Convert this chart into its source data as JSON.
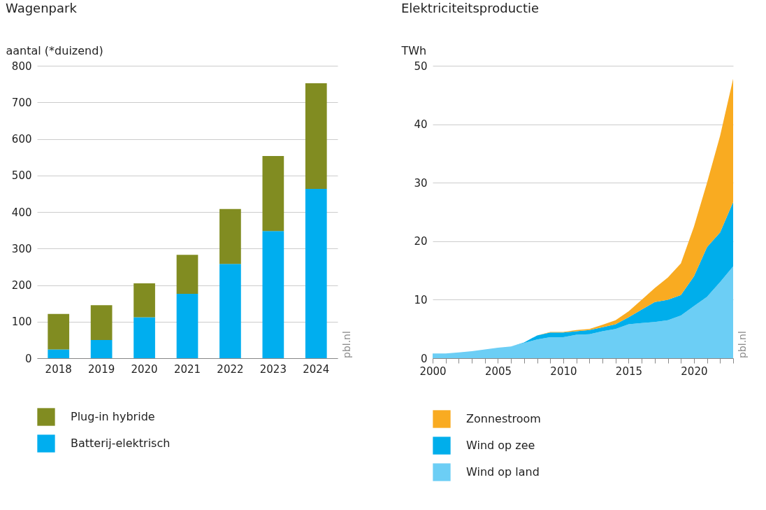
{
  "chart_data": [
    {
      "type": "bar",
      "title": "Wagenpark",
      "ylabel": "aantal (*duizend)",
      "stacked": true,
      "grid": "y",
      "legend": "bottom",
      "categories": [
        "2018",
        "2019",
        "2020",
        "2021",
        "2022",
        "2023",
        "2024"
      ],
      "series": [
        {
          "name": "Batterij-elektrisch",
          "color": "#00aeef",
          "values": [
            24,
            50,
            112,
            176,
            258,
            348,
            463
          ]
        },
        {
          "name": "Plug-in hybride",
          "color": "#818c21",
          "values": [
            97,
            95,
            93,
            107,
            150,
            205,
            289
          ]
        }
      ],
      "ylim": [
        0,
        800
      ],
      "yticks": [
        0,
        100,
        200,
        300,
        400,
        500,
        600,
        700,
        800
      ],
      "annotations": [
        "pbl.nl"
      ]
    },
    {
      "type": "area",
      "title": "Elektriciteitsproductie",
      "ylabel": "TWh",
      "stacked": true,
      "grid": "y",
      "legend": "bottom",
      "x": [
        2000,
        2001,
        2002,
        2003,
        2004,
        2005,
        2006,
        2007,
        2008,
        2009,
        2010,
        2011,
        2012,
        2013,
        2014,
        2015,
        2016,
        2017,
        2018,
        2019,
        2020,
        2021,
        2022,
        2023
      ],
      "series": [
        {
          "name": "Wind op land",
          "color": "#6ccef5",
          "values": [
            0.8,
            0.8,
            1.0,
            1.2,
            1.5,
            1.8,
            2.0,
            2.6,
            3.2,
            3.6,
            3.6,
            4.0,
            4.1,
            4.6,
            5.0,
            5.8,
            6.0,
            6.2,
            6.5,
            7.3,
            8.9,
            10.5,
            13.0,
            15.7
          ]
        },
        {
          "name": "Wind op zee",
          "color": "#00aeeb",
          "values": [
            0,
            0,
            0,
            0,
            0,
            0,
            0,
            0.1,
            0.7,
            0.8,
            0.8,
            0.6,
            0.7,
            0.7,
            0.8,
            1.2,
            2.3,
            3.4,
            3.5,
            3.5,
            5.1,
            8.5,
            8.5,
            11.0
          ]
        },
        {
          "name": "Zonnestroom",
          "color": "#f9ab21",
          "values": [
            0,
            0,
            0,
            0,
            0,
            0,
            0,
            0,
            0,
            0.1,
            0.1,
            0.2,
            0.2,
            0.4,
            0.7,
            1.0,
            1.7,
            2.4,
            3.8,
            5.4,
            8.5,
            11.0,
            16.5,
            21.1
          ]
        }
      ],
      "xlim": [
        2000,
        2023
      ],
      "xticks": [
        2000,
        {
          "value": 2001,
          "label": null
        },
        {
          "value": 2002,
          "label": null
        },
        {
          "value": 2003,
          "label": null
        },
        {
          "value": 2004,
          "label": null
        },
        2005,
        {
          "value": 2006,
          "label": null
        },
        {
          "value": 2007,
          "label": null
        },
        {
          "value": 2008,
          "label": null
        },
        {
          "value": 2009,
          "label": null
        },
        2010,
        {
          "value": 2011,
          "label": null
        },
        {
          "value": 2012,
          "label": null
        },
        {
          "value": 2013,
          "label": null
        },
        {
          "value": 2014,
          "label": null
        },
        2015,
        {
          "value": 2016,
          "label": null
        },
        {
          "value": 2017,
          "label": null
        },
        {
          "value": 2018,
          "label": null
        },
        {
          "value": 2019,
          "label": null
        },
        2020,
        {
          "value": 2021,
          "label": null
        },
        {
          "value": 2022,
          "label": null
        },
        {
          "value": 2023,
          "label": null
        }
      ],
      "ylim": [
        0,
        50
      ],
      "yticks": [
        0,
        10,
        20,
        30,
        40,
        50
      ],
      "annotations": [
        "pbl.nl"
      ]
    }
  ]
}
